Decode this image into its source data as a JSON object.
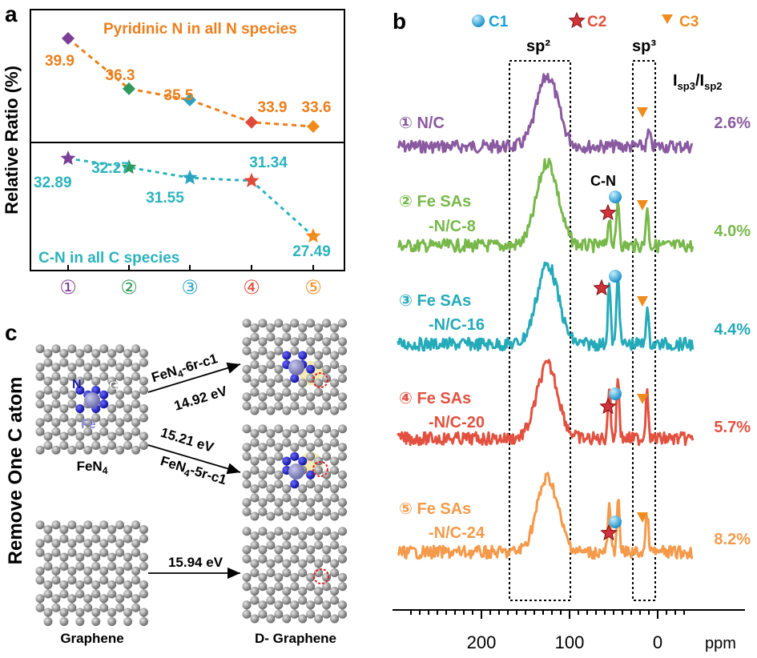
{
  "panel_labels": {
    "a": "a",
    "b": "b",
    "c": "c"
  },
  "colors": {
    "purple": "#7b3f98",
    "green": "#2f9a5a",
    "cyan": "#2aa3c2",
    "red": "#e04a3a",
    "orange": "#f08c1e",
    "teal": "#2bb3bd",
    "nmr_purple": "#8a5aa0",
    "nmr_green": "#78b84a",
    "nmr_cyan": "#24aab8",
    "nmr_red": "#e2513f",
    "nmr_orange": "#f49a4a",
    "c1_blue": "#1aa0d8"
  },
  "chart_data": [
    {
      "type": "line",
      "panel": "a",
      "ylabel": "Relative Ratio (%)",
      "x_ticks": [
        "①",
        "②",
        "③",
        "④",
        "⑤"
      ],
      "series": [
        {
          "name": "Pyridinic N in all N species",
          "marker": "diamond",
          "values": [
            39.9,
            36.3,
            35.5,
            33.9,
            33.6
          ],
          "labels": [
            "39.9",
            "36.3",
            "35.5",
            "33.9",
            "33.6"
          ]
        },
        {
          "name": "C-N in all C species",
          "marker": "star",
          "values": [
            32.89,
            32.27,
            31.55,
            31.34,
            27.49
          ],
          "labels": [
            "32.89",
            "32.27",
            "31.55",
            "31.34",
            "27.49"
          ]
        }
      ]
    },
    {
      "type": "line",
      "panel": "b",
      "xlabel": "ppm",
      "x_ticks": [
        "200",
        "100",
        "0"
      ],
      "xlim": [
        290,
        -35
      ],
      "legend": [
        "C1",
        "C2",
        "C3"
      ],
      "regions": [
        "sp²",
        "sp³"
      ],
      "ratio_header": "I_sp3/I_sp2",
      "peak_label": "C-N",
      "series": [
        {
          "label_line1": "① N/C",
          "label_line2": "",
          "ratio": "2.6%"
        },
        {
          "label_line1": "② Fe SAs",
          "label_line2": "-N/C-8",
          "ratio": "4.0%"
        },
        {
          "label_line1": "③ Fe SAs",
          "label_line2": "-N/C-16",
          "ratio": "4.4%"
        },
        {
          "label_line1": "④ Fe SAs",
          "label_line2": "-N/C-20",
          "ratio": "5.7%"
        },
        {
          "label_line1": "⑤ Fe SAs",
          "label_line2": "-N/C-24",
          "ratio": "8.2%"
        }
      ]
    }
  ],
  "panel_c": {
    "side_label": "Remove One C atom",
    "atom_n": "N",
    "atom_c": "C",
    "atom_fe": "Fe",
    "fen4_label": "FeN₄",
    "graphene_label": "Graphene",
    "dgraphene_label": "D- Graphene",
    "arrow1_top": "FeN₄-6r-c1",
    "arrow1_bottom": "14.92 eV",
    "arrow2_top": "15.21 eV",
    "arrow2_bottom": "FeN₄-5r-c1",
    "arrow3_top": "15.94 eV"
  }
}
